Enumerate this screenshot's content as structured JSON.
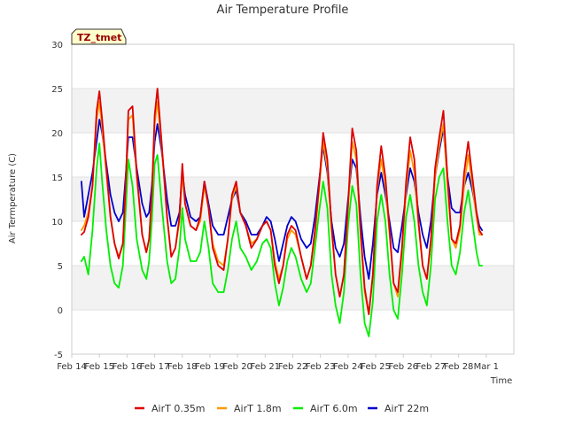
{
  "chart_data": {
    "type": "line",
    "title": "Air Temperature Profile",
    "xlabel": "Time",
    "ylabel": "Air Termperature (C)",
    "badge": "TZ_tmet",
    "ylim": [
      -5,
      30
    ],
    "xlim": [
      0,
      16
    ],
    "yticks": [
      -5,
      0,
      5,
      10,
      15,
      20,
      25,
      30
    ],
    "xtick_labels": [
      "Feb 14",
      "Feb 15",
      "Feb 16",
      "Feb 17",
      "Feb 18",
      "Feb 19",
      "Feb 20",
      "Feb 21",
      "Feb 22",
      "Feb 23",
      "Feb 24",
      "Feb 25",
      "Feb 26",
      "Feb 27",
      "Feb 28",
      "Mar 1"
    ],
    "grid": "horizontal bands",
    "legend_position": "bottom",
    "x_unit": "days since Feb 14",
    "series": [
      {
        "name": "AirT 0.35m",
        "color": "#dd0000",
        "x": [
          0.35,
          0.45,
          0.6,
          0.75,
          0.9,
          1.0,
          1.1,
          1.25,
          1.4,
          1.55,
          1.7,
          1.85,
          1.95,
          2.05,
          2.2,
          2.35,
          2.55,
          2.7,
          2.8,
          2.9,
          3.0,
          3.1,
          3.25,
          3.45,
          3.6,
          3.75,
          3.9,
          4.0,
          4.1,
          4.3,
          4.5,
          4.65,
          4.8,
          4.95,
          5.1,
          5.3,
          5.5,
          5.65,
          5.8,
          5.95,
          6.1,
          6.3,
          6.5,
          6.7,
          6.9,
          7.05,
          7.2,
          7.35,
          7.5,
          7.65,
          7.8,
          7.95,
          8.1,
          8.3,
          8.5,
          8.65,
          8.8,
          8.95,
          9.1,
          9.25,
          9.4,
          9.55,
          9.7,
          9.85,
          10.0,
          10.15,
          10.3,
          10.45,
          10.6,
          10.75,
          10.9,
          11.05,
          11.2,
          11.35,
          11.5,
          11.65,
          11.8,
          11.95,
          12.1,
          12.25,
          12.4,
          12.55,
          12.7,
          12.85,
          13.0,
          13.15,
          13.3,
          13.45,
          13.6,
          13.75,
          13.9,
          14.05,
          14.2,
          14.35,
          14.5,
          14.65,
          14.75,
          14.85
        ],
        "y": [
          8.5,
          8.8,
          10.5,
          14.0,
          22.5,
          24.7,
          21.5,
          16.0,
          10.5,
          7.5,
          5.8,
          7.5,
          14.0,
          22.5,
          23.0,
          15.5,
          8.5,
          6.5,
          8.0,
          13.0,
          22.0,
          25.0,
          19.0,
          10.5,
          6.0,
          7.0,
          10.5,
          16.5,
          12.0,
          9.5,
          9.0,
          10.5,
          14.5,
          11.5,
          7.0,
          5.0,
          4.5,
          8.0,
          13.0,
          14.5,
          11.0,
          9.5,
          7.0,
          8.0,
          9.5,
          10.0,
          9.0,
          5.0,
          3.0,
          5.0,
          8.5,
          9.5,
          9.0,
          6.0,
          3.5,
          5.0,
          9.0,
          14.0,
          20.0,
          17.0,
          9.5,
          4.0,
          1.5,
          4.0,
          12.0,
          20.5,
          18.0,
          9.0,
          2.5,
          -0.5,
          4.0,
          14.0,
          18.5,
          15.0,
          9.0,
          3.0,
          2.0,
          7.0,
          14.5,
          19.5,
          17.0,
          10.0,
          5.0,
          3.5,
          8.0,
          16.0,
          19.5,
          22.5,
          15.0,
          8.0,
          7.5,
          9.5,
          15.5,
          19.0,
          15.0,
          11.0,
          9.0,
          8.5
        ]
      },
      {
        "name": "AirT 1.8m",
        "color": "#ff9900",
        "x": [
          0.35,
          0.45,
          0.6,
          0.75,
          0.9,
          1.0,
          1.1,
          1.25,
          1.4,
          1.55,
          1.7,
          1.85,
          1.95,
          2.05,
          2.2,
          2.35,
          2.55,
          2.7,
          2.8,
          2.9,
          3.0,
          3.1,
          3.25,
          3.45,
          3.6,
          3.75,
          3.9,
          4.0,
          4.1,
          4.3,
          4.5,
          4.65,
          4.8,
          4.95,
          5.1,
          5.3,
          5.5,
          5.65,
          5.8,
          5.95,
          6.1,
          6.3,
          6.5,
          6.7,
          6.9,
          7.05,
          7.2,
          7.35,
          7.5,
          7.65,
          7.8,
          7.95,
          8.1,
          8.3,
          8.5,
          8.65,
          8.8,
          8.95,
          9.1,
          9.25,
          9.4,
          9.55,
          9.7,
          9.85,
          10.0,
          10.15,
          10.3,
          10.45,
          10.6,
          10.75,
          10.9,
          11.05,
          11.2,
          11.35,
          11.5,
          11.65,
          11.8,
          11.95,
          12.1,
          12.25,
          12.4,
          12.55,
          12.7,
          12.85,
          13.0,
          13.15,
          13.3,
          13.45,
          13.6,
          13.75,
          13.9,
          14.05,
          14.2,
          14.35,
          14.5,
          14.65,
          14.75,
          14.85
        ],
        "y": [
          9.0,
          9.5,
          11.0,
          14.0,
          21.5,
          23.5,
          20.5,
          15.5,
          10.5,
          7.5,
          6.0,
          7.5,
          13.5,
          21.5,
          22.0,
          15.0,
          8.5,
          6.5,
          8.0,
          12.5,
          21.0,
          23.5,
          18.5,
          10.5,
          6.0,
          7.0,
          10.0,
          15.5,
          12.0,
          9.5,
          9.0,
          10.0,
          14.0,
          11.5,
          7.5,
          5.5,
          5.0,
          8.0,
          12.5,
          14.0,
          11.0,
          9.5,
          7.5,
          8.0,
          9.5,
          10.0,
          9.0,
          5.5,
          3.5,
          5.0,
          8.0,
          9.0,
          8.5,
          6.0,
          3.5,
          5.0,
          8.5,
          13.5,
          19.0,
          16.0,
          9.0,
          4.0,
          1.5,
          4.0,
          11.5,
          19.0,
          17.0,
          8.5,
          2.0,
          -0.5,
          4.0,
          13.5,
          17.0,
          14.0,
          8.5,
          3.0,
          1.5,
          6.5,
          13.5,
          18.0,
          15.5,
          9.5,
          5.0,
          3.5,
          7.5,
          15.0,
          18.5,
          21.0,
          14.0,
          8.0,
          7.0,
          9.0,
          14.0,
          17.5,
          14.0,
          10.5,
          8.5,
          8.5
        ]
      },
      {
        "name": "AirT 6.0m",
        "color": "#00ee00",
        "x": [
          0.35,
          0.45,
          0.6,
          0.75,
          0.9,
          1.0,
          1.1,
          1.25,
          1.4,
          1.55,
          1.7,
          1.85,
          1.95,
          2.05,
          2.2,
          2.35,
          2.55,
          2.7,
          2.8,
          2.9,
          3.0,
          3.1,
          3.25,
          3.45,
          3.6,
          3.75,
          3.9,
          4.0,
          4.1,
          4.3,
          4.5,
          4.65,
          4.8,
          4.95,
          5.1,
          5.3,
          5.5,
          5.65,
          5.8,
          5.95,
          6.1,
          6.3,
          6.5,
          6.7,
          6.9,
          7.05,
          7.2,
          7.35,
          7.5,
          7.65,
          7.8,
          7.95,
          8.1,
          8.3,
          8.5,
          8.65,
          8.8,
          8.95,
          9.1,
          9.25,
          9.4,
          9.55,
          9.7,
          9.85,
          10.0,
          10.15,
          10.3,
          10.45,
          10.6,
          10.75,
          10.9,
          11.05,
          11.2,
          11.35,
          11.5,
          11.65,
          11.8,
          11.95,
          12.1,
          12.25,
          12.4,
          12.55,
          12.7,
          12.85,
          13.0,
          13.15,
          13.3,
          13.45,
          13.6,
          13.75,
          13.9,
          14.05,
          14.2,
          14.35,
          14.5,
          14.65,
          14.75,
          14.85
        ],
        "y": [
          5.5,
          6.0,
          4.0,
          9.0,
          16.0,
          18.8,
          14.5,
          9.0,
          5.0,
          3.0,
          2.5,
          5.0,
          11.0,
          17.0,
          14.0,
          8.0,
          4.5,
          3.5,
          5.5,
          10.0,
          16.5,
          17.5,
          12.0,
          5.5,
          3.0,
          3.5,
          7.0,
          11.5,
          8.0,
          5.5,
          5.5,
          6.5,
          10.0,
          7.0,
          3.0,
          2.0,
          2.0,
          4.5,
          8.0,
          10.0,
          7.0,
          6.0,
          4.5,
          5.5,
          7.5,
          8.0,
          7.0,
          3.0,
          0.5,
          2.5,
          5.5,
          7.0,
          6.0,
          3.5,
          2.0,
          3.0,
          7.0,
          11.0,
          14.5,
          11.5,
          4.0,
          0.5,
          -1.5,
          2.0,
          9.5,
          14.0,
          12.0,
          4.0,
          -1.5,
          -3.0,
          1.0,
          10.0,
          13.0,
          10.0,
          4.0,
          0.0,
          -1.0,
          4.0,
          10.5,
          13.0,
          10.0,
          5.0,
          2.0,
          0.5,
          5.0,
          12.5,
          15.0,
          16.0,
          10.0,
          5.0,
          4.0,
          6.5,
          11.0,
          13.5,
          10.0,
          6.5,
          5.0,
          5.0
        ]
      },
      {
        "name": "AirT 22m",
        "color": "#0000cc",
        "x": [
          0.35,
          0.45,
          0.6,
          0.75,
          0.9,
          1.0,
          1.1,
          1.25,
          1.4,
          1.55,
          1.7,
          1.85,
          1.95,
          2.05,
          2.2,
          2.35,
          2.55,
          2.7,
          2.8,
          2.9,
          3.0,
          3.1,
          3.25,
          3.45,
          3.6,
          3.75,
          3.9,
          4.0,
          4.1,
          4.3,
          4.5,
          4.65,
          4.8,
          4.95,
          5.1,
          5.3,
          5.5,
          5.65,
          5.8,
          5.95,
          6.1,
          6.3,
          6.5,
          6.7,
          6.9,
          7.05,
          7.2,
          7.35,
          7.5,
          7.65,
          7.8,
          7.95,
          8.1,
          8.3,
          8.5,
          8.65,
          8.8,
          8.95,
          9.1,
          9.25,
          9.4,
          9.55,
          9.7,
          9.85,
          10.0,
          10.15,
          10.3,
          10.45,
          10.6,
          10.75,
          10.9,
          11.05,
          11.2,
          11.35,
          11.5,
          11.65,
          11.8,
          11.95,
          12.1,
          12.25,
          12.4,
          12.55,
          12.7,
          12.85,
          13.0,
          13.15,
          13.3,
          13.45,
          13.6,
          13.75,
          13.9,
          14.05,
          14.2,
          14.35,
          14.5,
          14.65,
          14.75,
          14.85
        ],
        "y": [
          14.5,
          10.5,
          13.0,
          15.5,
          19.0,
          21.5,
          20.0,
          16.5,
          13.0,
          11.0,
          10.0,
          11.0,
          15.0,
          19.5,
          19.5,
          16.0,
          12.0,
          10.5,
          11.0,
          14.0,
          19.0,
          21.0,
          18.0,
          12.5,
          9.5,
          9.5,
          11.0,
          15.5,
          13.0,
          10.5,
          10.0,
          10.5,
          14.5,
          12.0,
          9.5,
          8.5,
          8.5,
          10.5,
          12.5,
          13.5,
          11.0,
          10.0,
          8.5,
          8.5,
          9.5,
          10.5,
          10.0,
          8.0,
          5.5,
          7.5,
          9.5,
          10.5,
          10.0,
          8.0,
          7.0,
          7.5,
          10.5,
          14.5,
          18.5,
          15.5,
          10.0,
          7.0,
          6.0,
          7.5,
          12.5,
          17.0,
          16.0,
          10.5,
          6.0,
          3.5,
          7.5,
          13.0,
          15.5,
          13.0,
          10.0,
          7.0,
          6.5,
          9.5,
          13.0,
          16.0,
          14.5,
          11.0,
          8.5,
          7.0,
          10.0,
          15.0,
          18.0,
          20.5,
          15.0,
          11.5,
          11.0,
          11.0,
          14.0,
          15.5,
          13.5,
          11.0,
          9.5,
          9.0
        ]
      }
    ]
  }
}
